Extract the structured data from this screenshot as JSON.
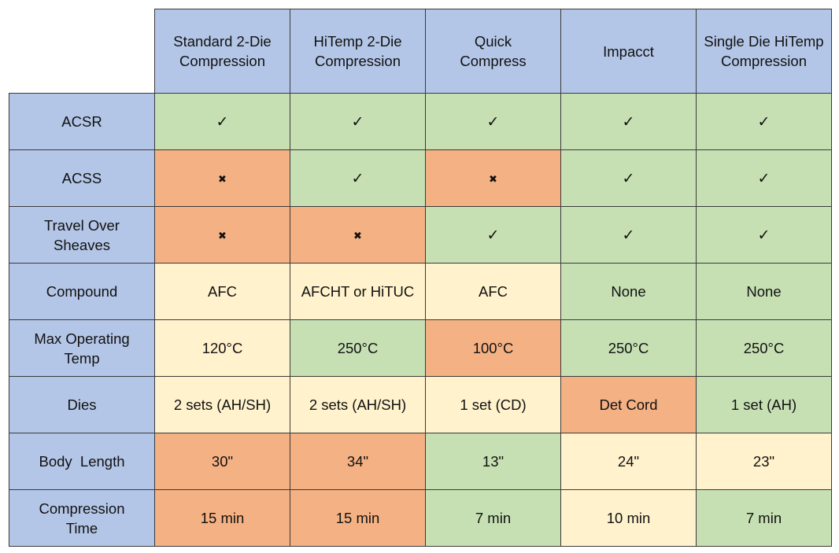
{
  "columns": [
    [
      "Standard 2-Die",
      "Compression"
    ],
    [
      "HiTemp 2-Die",
      "Compression"
    ],
    [
      "Quick",
      "Compress"
    ],
    [
      "Impacct"
    ],
    [
      "Single Die HiTemp",
      "Compression"
    ]
  ],
  "rows": [
    {
      "label": [
        "ACSR"
      ],
      "cells": [
        {
          "text": "✓",
          "status": "good",
          "kind": "check"
        },
        {
          "text": "✓",
          "status": "good",
          "kind": "check"
        },
        {
          "text": "✓",
          "status": "good",
          "kind": "check"
        },
        {
          "text": "✓",
          "status": "good",
          "kind": "check"
        },
        {
          "text": "✓",
          "status": "good",
          "kind": "check"
        }
      ]
    },
    {
      "label": [
        "ACSS"
      ],
      "cells": [
        {
          "text": "✖",
          "status": "bad",
          "kind": "cross"
        },
        {
          "text": "✓",
          "status": "good",
          "kind": "check"
        },
        {
          "text": "✖",
          "status": "bad",
          "kind": "cross"
        },
        {
          "text": "✓",
          "status": "good",
          "kind": "check"
        },
        {
          "text": "✓",
          "status": "good",
          "kind": "check"
        }
      ]
    },
    {
      "label": [
        "Travel Over",
        "Sheaves"
      ],
      "cells": [
        {
          "text": "✖",
          "status": "bad",
          "kind": "cross"
        },
        {
          "text": "✖",
          "status": "bad",
          "kind": "cross"
        },
        {
          "text": "✓",
          "status": "good",
          "kind": "check"
        },
        {
          "text": "✓",
          "status": "good",
          "kind": "check"
        },
        {
          "text": "✓",
          "status": "good",
          "kind": "check"
        }
      ]
    },
    {
      "label": [
        "Compound"
      ],
      "cells": [
        {
          "text": "AFC",
          "status": "neutral"
        },
        {
          "text": "AFCHT or HiTUC",
          "status": "neutral"
        },
        {
          "text": "AFC",
          "status": "neutral"
        },
        {
          "text": "None",
          "status": "good"
        },
        {
          "text": "None",
          "status": "good"
        }
      ]
    },
    {
      "label": [
        "Max Operating",
        "Temp"
      ],
      "cells": [
        {
          "text": "120°C",
          "status": "neutral"
        },
        {
          "text": "250°C",
          "status": "good"
        },
        {
          "text": "100°C",
          "status": "bad"
        },
        {
          "text": "250°C",
          "status": "good"
        },
        {
          "text": "250°C",
          "status": "good"
        }
      ]
    },
    {
      "label": [
        "Dies"
      ],
      "cells": [
        {
          "text": "2 sets (AH/SH)",
          "status": "neutral"
        },
        {
          "text": "2 sets (AH/SH)",
          "status": "neutral"
        },
        {
          "text": "1 set (CD)",
          "status": "neutral"
        },
        {
          "text": "Det Cord",
          "status": "bad"
        },
        {
          "text": "1 set (AH)",
          "status": "good"
        }
      ]
    },
    {
      "label": [
        "Body  Length"
      ],
      "cells": [
        {
          "text": "30\"",
          "status": "bad"
        },
        {
          "text": "34\"",
          "status": "bad"
        },
        {
          "text": "13\"",
          "status": "good"
        },
        {
          "text": "24\"",
          "status": "neutral"
        },
        {
          "text": "23\"",
          "status": "neutral"
        }
      ]
    },
    {
      "label": [
        "Compression",
        "Time"
      ],
      "cells": [
        {
          "text": "15 min",
          "status": "bad"
        },
        {
          "text": "15 min",
          "status": "bad"
        },
        {
          "text": "7 min",
          "status": "good"
        },
        {
          "text": "10 min",
          "status": "neutral"
        },
        {
          "text": "7 min",
          "status": "good"
        }
      ]
    }
  ],
  "status_colors": {
    "header": "#b4c6e7",
    "good": "#c6e0b4",
    "bad": "#f4b183",
    "neutral": "#fff2cc"
  }
}
